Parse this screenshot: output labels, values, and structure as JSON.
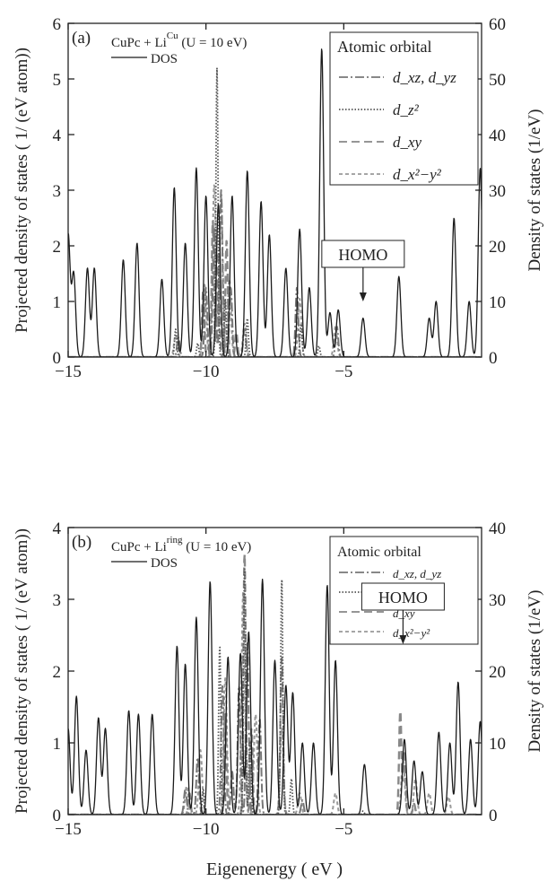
{
  "chart_data": [
    {
      "type": "line",
      "panel_label": "(a)",
      "system_text": "CuPc + Li",
      "system_sup": "Cu",
      "u_text": "(U = 10 eV)",
      "dos_legend": "DOS",
      "legend_title": "Atomic orbital",
      "legend_entries": [
        "d_xz, d_yz",
        "d_z²",
        "d_xy",
        "d_x²−y²"
      ],
      "ylabel_left": "Projected density of states ( 1/ (eV  atom))",
      "ylabel_right": "Density of states (1/eV)",
      "xlim": [
        -15,
        0
      ],
      "ylim_left": [
        0,
        6
      ],
      "ylim_right": [
        0,
        60
      ],
      "xticks": [
        "−15",
        "−10",
        "−5"
      ],
      "yticks_left": [
        "0",
        "1",
        "2",
        "3",
        "4",
        "5",
        "6"
      ],
      "yticks_right": [
        "0",
        "10",
        "20",
        "30",
        "40",
        "50",
        "60"
      ],
      "annotation": {
        "text": "HOMO",
        "x": -4.3
      },
      "dos_peaks": [
        [
          -15,
          2.2
        ],
        [
          -14.8,
          1.5
        ],
        [
          -14.3,
          1.6
        ],
        [
          -14.05,
          1.6
        ],
        [
          -13.0,
          1.75
        ],
        [
          -12.5,
          2.05
        ],
        [
          -11.6,
          1.4
        ],
        [
          -11.15,
          3.05
        ],
        [
          -10.75,
          2.05
        ],
        [
          -10.35,
          3.4
        ],
        [
          -10.0,
          2.9
        ],
        [
          -9.55,
          2.75
        ],
        [
          -9.05,
          2.9
        ],
        [
          -8.5,
          3.35
        ],
        [
          -8.0,
          2.8
        ],
        [
          -7.7,
          2.2
        ],
        [
          -7.1,
          1.6
        ],
        [
          -6.6,
          2.3
        ],
        [
          -6.25,
          1.25
        ],
        [
          -5.8,
          5.55
        ],
        [
          -5.5,
          0.8
        ],
        [
          -5.2,
          0.85
        ],
        [
          -4.3,
          0.7
        ],
        [
          -3.0,
          1.45
        ],
        [
          -1.9,
          0.7
        ],
        [
          -1.65,
          1.0
        ],
        [
          -1.0,
          2.5
        ],
        [
          -0.45,
          1.0
        ],
        [
          -0.05,
          3.4
        ]
      ],
      "dxz_peaks": [
        [
          -11.0,
          0.35
        ],
        [
          -10.0,
          1.25
        ],
        [
          -9.7,
          2.35
        ],
        [
          -9.45,
          3.0
        ],
        [
          -9.1,
          1.25
        ],
        [
          -8.6,
          0.5
        ],
        [
          -6.7,
          1.25
        ],
        [
          -5.25,
          0.55
        ]
      ],
      "dz2_peaks": [
        [
          -11.1,
          0.5
        ],
        [
          -10.3,
          0.25
        ],
        [
          -9.6,
          5.2
        ],
        [
          -9.3,
          1.05
        ],
        [
          -8.5,
          0.7
        ],
        [
          -6.55,
          0.6
        ],
        [
          -5.9,
          0.2
        ]
      ],
      "dxy_peaks": [
        [
          -10.1,
          1.2
        ],
        [
          -9.75,
          2.45
        ],
        [
          -9.55,
          1.9
        ],
        [
          -9.25,
          2.1
        ],
        [
          -8.9,
          0.45
        ]
      ],
      "dx2y2_peaks": [
        [
          -11.1,
          0.4
        ],
        [
          -10.05,
          1.3
        ],
        [
          -9.7,
          3.1
        ],
        [
          -9.45,
          2.9
        ],
        [
          -9.15,
          1.4
        ],
        [
          -8.6,
          0.6
        ],
        [
          -6.6,
          1.05
        ],
        [
          -5.3,
          0.55
        ]
      ]
    },
    {
      "type": "line",
      "panel_label": "(b)",
      "system_text": "CuPc + Li",
      "system_sup": "ring",
      "u_text": "(U = 10 eV)",
      "dos_legend": "DOS",
      "legend_title": "Atomic orbital",
      "legend_entries": [
        "d_xz, d_yz",
        "d_z²",
        "d_xy",
        "d_x²−y²"
      ],
      "ylabel_left": "Projected density of states ( 1/ (eV  atom))",
      "ylabel_right": "Density of states (1/eV)",
      "xlabel": "Eigenenergy ( eV )",
      "xlim": [
        -15,
        0
      ],
      "ylim_left": [
        0,
        4
      ],
      "ylim_right": [
        0,
        40
      ],
      "xticks": [
        "−15",
        "−10",
        "−5"
      ],
      "yticks_left": [
        "0",
        "1",
        "2",
        "3",
        "4"
      ],
      "yticks_right": [
        "0",
        "10",
        "20",
        "30",
        "40"
      ],
      "annotation": {
        "text": "HOMO",
        "x": -2.85
      },
      "dos_peaks": [
        [
          -15,
          1.2
        ],
        [
          -14.7,
          1.65
        ],
        [
          -14.35,
          0.9
        ],
        [
          -13.9,
          1.35
        ],
        [
          -13.65,
          1.2
        ],
        [
          -12.8,
          1.45
        ],
        [
          -12.45,
          1.4
        ],
        [
          -11.95,
          1.4
        ],
        [
          -11.05,
          2.35
        ],
        [
          -10.75,
          2.1
        ],
        [
          -10.35,
          2.75
        ],
        [
          -9.85,
          3.25
        ],
        [
          -9.2,
          2.2
        ],
        [
          -8.75,
          2.25
        ],
        [
          -8.45,
          2.55
        ],
        [
          -7.95,
          3.28
        ],
        [
          -7.5,
          2.15
        ],
        [
          -7.1,
          1.8
        ],
        [
          -6.85,
          1.7
        ],
        [
          -6.5,
          1.0
        ],
        [
          -6.1,
          1.0
        ],
        [
          -5.6,
          3.2
        ],
        [
          -5.3,
          2.15
        ],
        [
          -4.25,
          0.7
        ],
        [
          -2.8,
          1.05
        ],
        [
          -2.45,
          0.75
        ],
        [
          -2.15,
          0.6
        ],
        [
          -1.55,
          1.15
        ],
        [
          -1.15,
          1.0
        ],
        [
          -0.85,
          1.85
        ],
        [
          -0.4,
          1.05
        ],
        [
          -0.05,
          1.3
        ]
      ],
      "dxz_peaks": [
        [
          -10.75,
          0.35
        ],
        [
          -10.3,
          0.8
        ],
        [
          -9.4,
          1.8
        ],
        [
          -9.05,
          0.6
        ],
        [
          -8.8,
          1.8
        ],
        [
          -8.5,
          2.4
        ],
        [
          -8.05,
          1.35
        ],
        [
          -7.25,
          2.2
        ],
        [
          -6.5,
          0.2
        ]
      ],
      "dz2_peaks": [
        [
          -10.1,
          0.35
        ],
        [
          -9.5,
          2.35
        ],
        [
          -8.6,
          3.45
        ],
        [
          -8.4,
          1.0
        ],
        [
          -7.25,
          3.3
        ],
        [
          -6.9,
          0.5
        ],
        [
          -4.3,
          0.05
        ]
      ],
      "dxy_peaks": [
        [
          -10.6,
          0.3
        ],
        [
          -9.3,
          1.4
        ],
        [
          -8.6,
          3.65
        ],
        [
          -8.35,
          1.2
        ],
        [
          -2.95,
          1.45
        ],
        [
          -2.8,
          0.9
        ],
        [
          -2.45,
          0.15
        ]
      ],
      "dx2y2_peaks": [
        [
          -10.7,
          0.4
        ],
        [
          -10.2,
          0.9
        ],
        [
          -9.3,
          1.9
        ],
        [
          -8.65,
          3.1
        ],
        [
          -8.2,
          1.4
        ],
        [
          -7.25,
          1.2
        ],
        [
          -6.6,
          0.3
        ],
        [
          -5.3,
          0.3
        ],
        [
          -2.85,
          0.8
        ],
        [
          -2.4,
          0.5
        ],
        [
          -1.9,
          0.3
        ],
        [
          -1.2,
          0.25
        ]
      ]
    }
  ],
  "figure": {
    "xlabel": "Eigenenergy ( eV )"
  }
}
